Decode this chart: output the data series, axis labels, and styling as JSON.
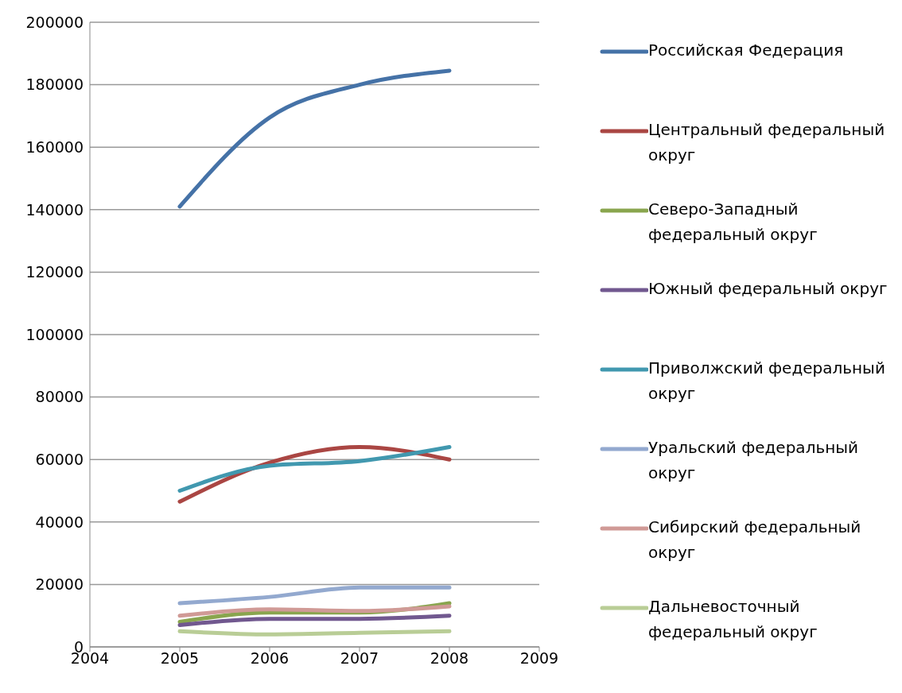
{
  "chart_data": {
    "type": "line",
    "x": [
      2005,
      2006,
      2007,
      2008
    ],
    "xlim": [
      2004,
      2009
    ],
    "xticks": [
      2004,
      2005,
      2006,
      2007,
      2008,
      2009
    ],
    "ylim": [
      0,
      200000
    ],
    "yticks": [
      0,
      20000,
      40000,
      60000,
      80000,
      100000,
      120000,
      140000,
      160000,
      180000,
      200000
    ],
    "grid": "y",
    "legend": "right",
    "marker": "none",
    "line_style": "solid",
    "series": [
      {
        "name": "Российская Федерация",
        "color": "#4572a7",
        "values": [
          141000,
          169500,
          180000,
          184500
        ]
      },
      {
        "name": "Центральный федеральный округ",
        "color": "#aa4643",
        "values": [
          46500,
          59000,
          64000,
          60000
        ]
      },
      {
        "name": "Северо-Западный федеральный округ",
        "color": "#89a54e",
        "values": [
          8000,
          11000,
          11000,
          14000
        ]
      },
      {
        "name": "Южный федеральный округ",
        "color": "#71588f",
        "values": [
          7000,
          9000,
          9000,
          10000
        ]
      },
      {
        "name": "Приволжский федеральный округ",
        "color": "#4198af",
        "values": [
          50000,
          58000,
          59500,
          64000
        ]
      },
      {
        "name": "Уральский федеральный округ",
        "color": "#93a9cf",
        "values": [
          14000,
          16000,
          19000,
          19000
        ]
      },
      {
        "name": "Сибирский федеральный округ",
        "color": "#d09a96",
        "values": [
          10000,
          12000,
          11500,
          13000
        ]
      },
      {
        "name": "Дальневосточный федеральный округ",
        "color": "#b9cd96",
        "values": [
          5000,
          4000,
          4500,
          5000
        ]
      }
    ]
  }
}
